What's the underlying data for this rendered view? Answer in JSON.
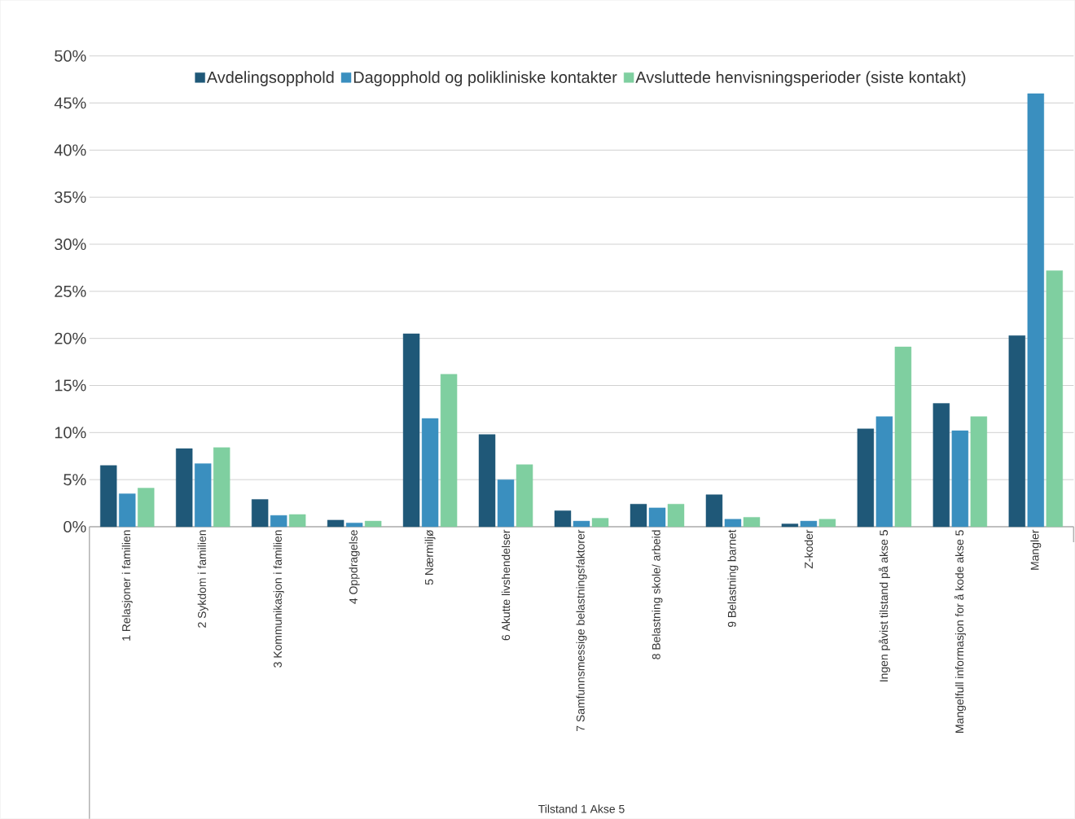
{
  "chart_data": {
    "type": "bar",
    "annotations": [
      "Tilstand 1 Akse 5"
    ],
    "categories": [
      "1 Relasjoner i familien",
      "2 Sykdom i familien",
      "3 Kommunikasjon i familien",
      "4 Oppdragelse",
      "5 Nærmiljø",
      "6 Akutte livshendelser",
      "7 Samfunnsmessige belastningsfaktorer",
      "8 Belastning skole/ arbeid",
      "9 Belastning barnet",
      "Z-koder",
      "Ingen påvist tilstand på akse 5",
      "Mangelfull informasjon for å kode akse 5",
      "Mangler"
    ],
    "series": [
      {
        "name": "Avdelingsopphold",
        "color": "#1f5878",
        "values": [
          6.5,
          8.3,
          2.9,
          0.7,
          20.5,
          9.8,
          1.7,
          2.4,
          3.4,
          0.3,
          10.4,
          13.1,
          20.3
        ]
      },
      {
        "name": "Dagopphold og polikliniske kontakter",
        "color": "#3a8fbf",
        "values": [
          3.5,
          6.7,
          1.2,
          0.4,
          11.5,
          5.0,
          0.6,
          2.0,
          0.8,
          0.6,
          11.7,
          10.2,
          46.0
        ]
      },
      {
        "name": "Avsluttede henvisningsperioder (siste kontakt)",
        "color": "#7fcfa0",
        "values": [
          4.1,
          8.4,
          1.3,
          0.6,
          16.2,
          6.6,
          0.9,
          2.4,
          1.0,
          0.8,
          19.1,
          11.7,
          27.2
        ]
      }
    ],
    "ylim": [
      0,
      50
    ],
    "yticks": [
      {
        "value": 0,
        "label": "0%"
      },
      {
        "value": 5,
        "label": "5%"
      },
      {
        "value": 10,
        "label": "10%"
      },
      {
        "value": 15,
        "label": "15%"
      },
      {
        "value": 20,
        "label": "20%"
      },
      {
        "value": 25,
        "label": "25%"
      },
      {
        "value": 30,
        "label": "30%"
      },
      {
        "value": 35,
        "label": "35%"
      },
      {
        "value": 40,
        "label": "40%"
      },
      {
        "value": 45,
        "label": "45%"
      },
      {
        "value": 50,
        "label": "50%"
      }
    ],
    "grid": "y",
    "legend": "top"
  }
}
